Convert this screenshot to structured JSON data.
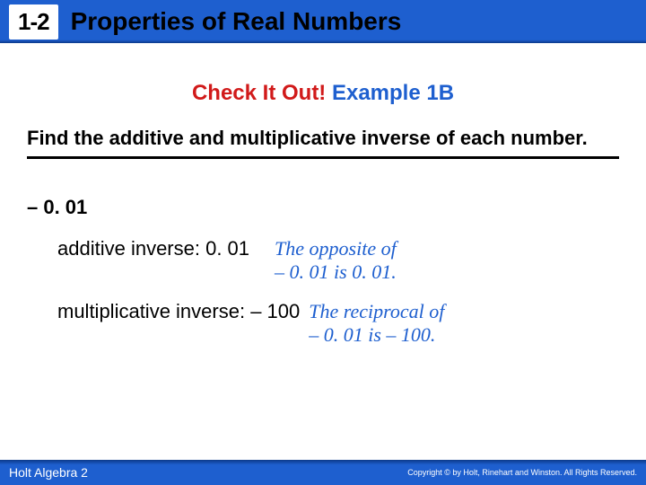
{
  "header": {
    "section_number": "1-2",
    "title": "Properties of Real Numbers",
    "bar_color": "#1e5fcf",
    "badge_bg": "#ffffff",
    "badge_text_color": "#000000",
    "title_color": "#000000",
    "title_fontsize": 28,
    "badge_fontsize": 26
  },
  "checkline": {
    "red_text": "Check It Out!",
    "blue_text": " Example 1B",
    "red_color": "#d11a1a",
    "blue_color": "#1e5fcf",
    "fontsize": 24
  },
  "prompt": {
    "text": "Find the additive and multiplicative inverse of each number.",
    "fontsize": 22,
    "underline_color": "#000000",
    "underline_width": 3
  },
  "given": {
    "text": "– 0. 01",
    "fontsize": 22
  },
  "row1": {
    "answer": "additive inverse: 0. 01",
    "explain_line1": "The opposite of",
    "explain_line2": "– 0. 01 is 0. 01."
  },
  "row2": {
    "answer": "multiplicative inverse: – 100",
    "explain_line1": "The reciprocal of",
    "explain_line2": "– 0. 01 is – 100."
  },
  "style": {
    "answer_color": "#000000",
    "answer_fontsize": 22,
    "explain_color": "#1e5fcf",
    "explain_fontsize": 22,
    "explain_font": "Times New Roman"
  },
  "footer": {
    "left": "Holt Algebra 2",
    "right": "Copyright © by Holt, Rinehart and Winston. All Rights Reserved.",
    "bg_color": "#1e5fcf",
    "text_color": "#ffffff",
    "left_fontsize": 14,
    "right_fontsize": 9
  }
}
